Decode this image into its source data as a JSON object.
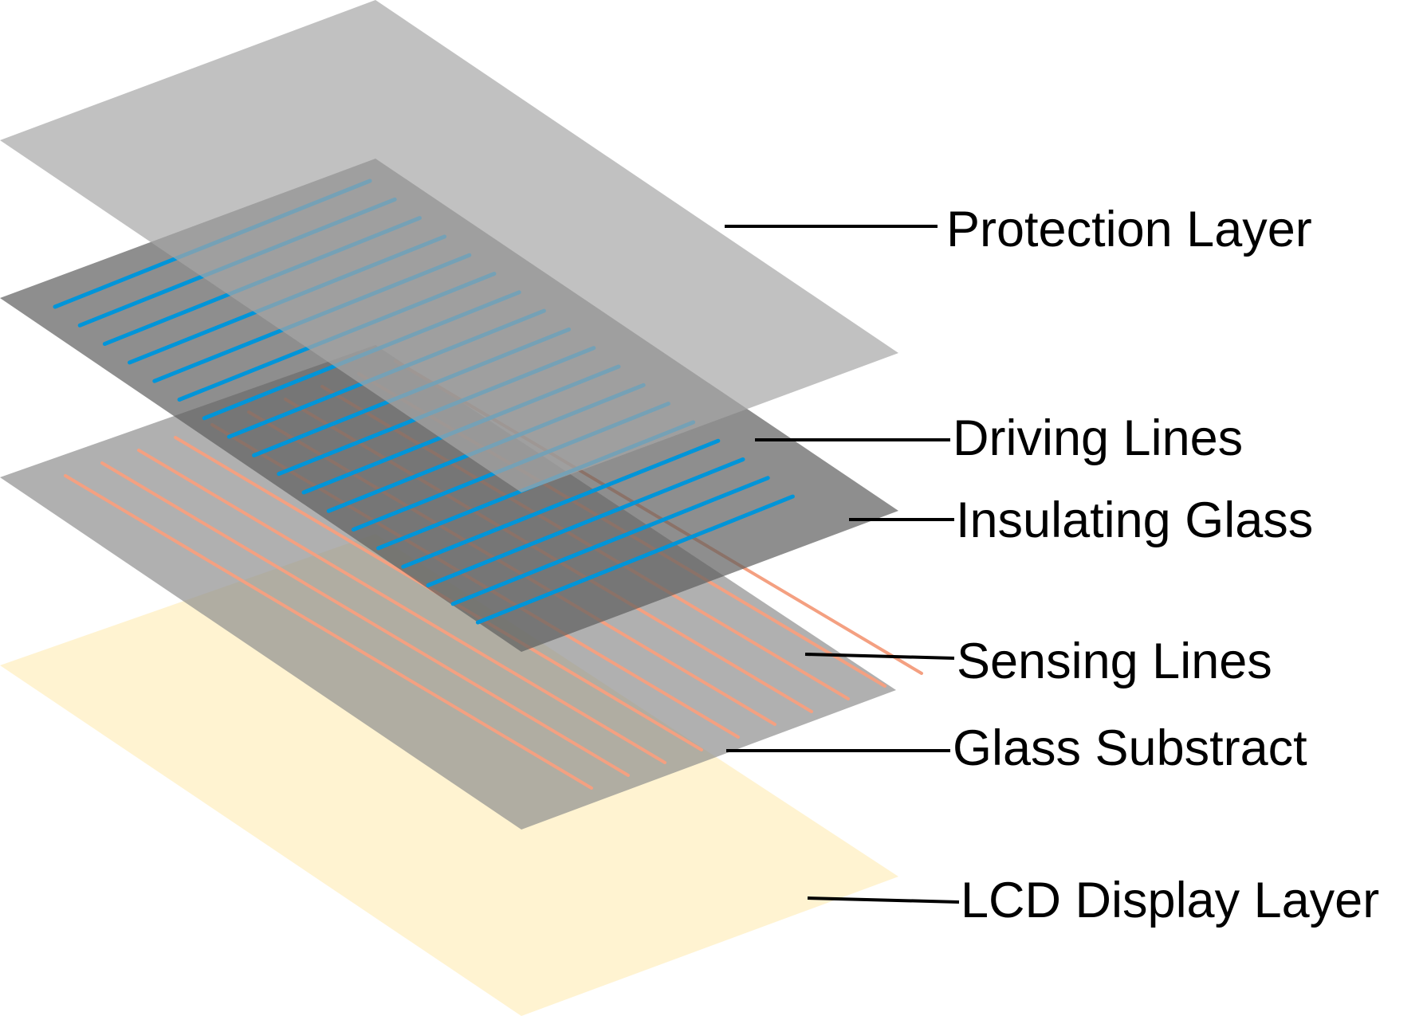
{
  "colors": {
    "protection_layer": "#a6a6a6",
    "driving_glass": "#5e5e5e",
    "sensing_glass": "#8f8f8f",
    "lcd_layer": "#fff2cc",
    "driving_line": "#0095d9",
    "sensing_line": "#f4a081",
    "label_text": "#000000",
    "leader_line": "#000000"
  },
  "labels": {
    "protection_layer": "Protection Layer",
    "driving_lines": "Driving Lines",
    "insulating_glass": "Insulating Glass",
    "sensing_lines": "Sensing Lines",
    "glass_substract": "Glass Substract",
    "lcd_display_layer": "LCD Display Layer"
  },
  "counts": {
    "driving_lines": 18,
    "sensing_lines": 10
  }
}
